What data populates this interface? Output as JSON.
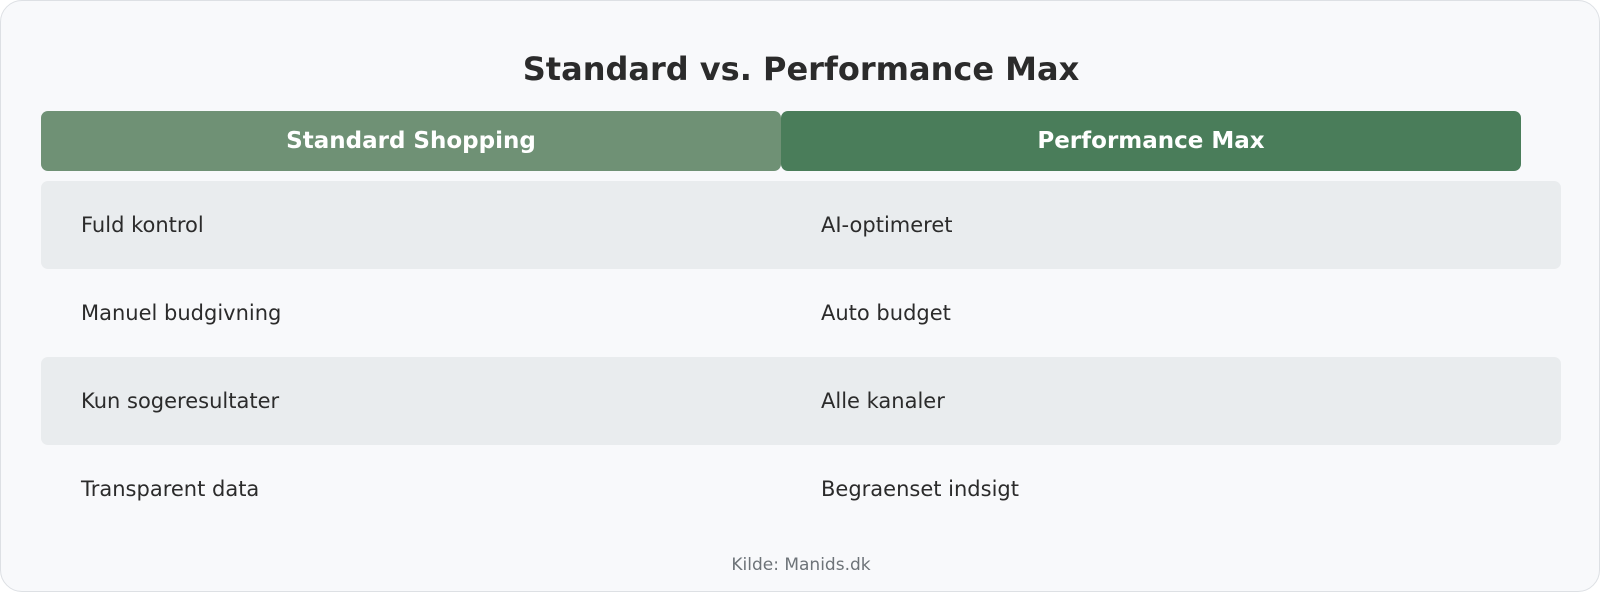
{
  "title": "Standard vs. Performance Max",
  "columns": [
    {
      "label": "Standard Shopping",
      "color": "#6f9175"
    },
    {
      "label": "Performance Max",
      "color": "#4a7d5a"
    }
  ],
  "rows": [
    {
      "left": "Fuld kontrol",
      "right": "AI-optimeret"
    },
    {
      "left": "Manuel budgivning",
      "right": "Auto budget"
    },
    {
      "left": "Kun sogeresultater",
      "right": "Alle kanaler"
    },
    {
      "left": "Transparent data",
      "right": "Begraenset indsigt"
    }
  ],
  "source": "Kilde: Manids.dk",
  "colors": {
    "background": "#f8f9fb",
    "row_shade": "#e9ecee",
    "text": "#2b2b2b",
    "muted_text": "#6d7378"
  }
}
